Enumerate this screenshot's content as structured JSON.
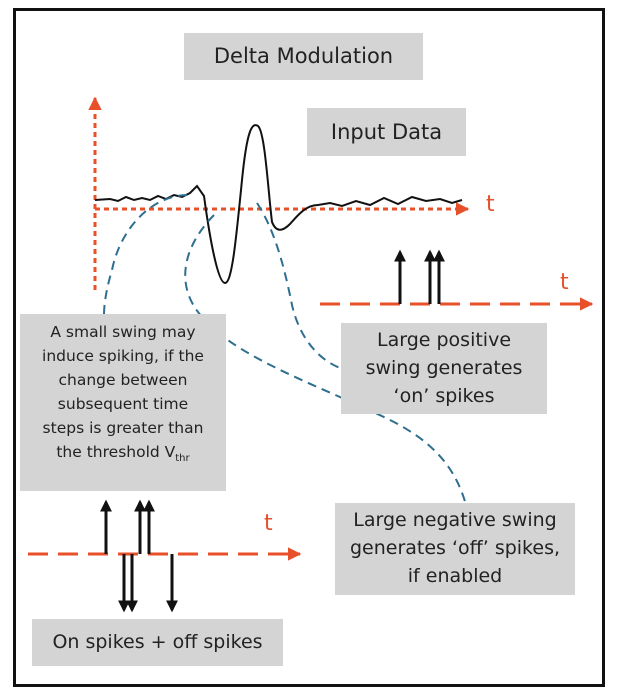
{
  "title": "Delta Modulation",
  "input_label": "Input Data",
  "axis_label_t": "t",
  "positive_note": [
    "Large positive",
    "swing generates",
    "‘on’ spikes"
  ],
  "small_swing_note": [
    "A small swing may",
    "induce spiking, if the",
    "change between",
    "subsequent time",
    "steps is greater than",
    "the threshold V"
  ],
  "threshold_subscript": "thr",
  "negative_note": [
    "Large negative swing",
    "generates ‘off’ spikes,",
    "if enabled"
  ],
  "spikes_label": "On spikes + off spikes",
  "colors": {
    "axis": "#e8502a",
    "connector": "#2e6e8e",
    "box": "#d4d4d4",
    "signal": "#111111"
  }
}
